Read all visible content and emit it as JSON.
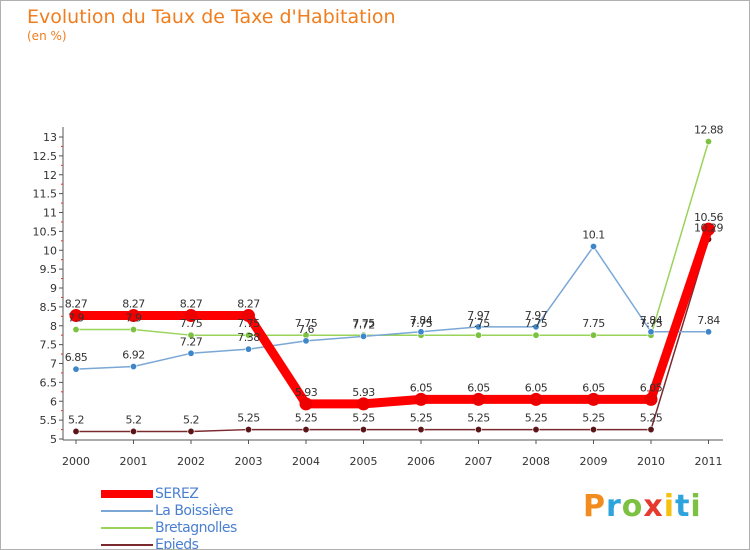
{
  "title": "Evolution du Taux de Taxe d'Habitation",
  "subtitle": "(en %)",
  "logo": {
    "letters": [
      "P",
      "r",
      "o",
      "x",
      "i",
      "t",
      "i"
    ],
    "colors": [
      "#f28c1e",
      "#2ea3dd",
      "#7cc142",
      "#e63a2e",
      "#f5c10f",
      "#2ea3dd",
      "#7cc142"
    ]
  },
  "chart_data": {
    "type": "line",
    "categories": [
      "2000",
      "2001",
      "2002",
      "2003",
      "2004",
      "2005",
      "2006",
      "2007",
      "2008",
      "2009",
      "2010",
      "2011"
    ],
    "ylim": [
      5,
      13
    ],
    "yticks": [
      "5",
      "5.5",
      "6",
      "6.5",
      "7",
      "7.5",
      "8",
      "8.5",
      "9",
      "9.5",
      "10",
      "10.5",
      "11",
      "11.5",
      "12",
      "12.5",
      "13"
    ],
    "grid": false,
    "legend_position": "bottom-left",
    "series": [
      {
        "name": "Epieds",
        "color": "#7a2a2e",
        "point_color": "#5a1518",
        "width": 1.5,
        "values": [
          5.2,
          5.2,
          5.2,
          5.25,
          5.25,
          5.25,
          5.25,
          5.25,
          5.25,
          5.25,
          5.25,
          10.29
        ],
        "labels": [
          "5.2",
          "5.2",
          "5.2",
          "5.25",
          "5.25",
          "5.25",
          "5.25",
          "5.25",
          "5.25",
          "5.25",
          "5.25",
          "10.29"
        ]
      },
      {
        "name": "Bretagnolles",
        "color": "#9ad35a",
        "point_color": "#7cc142",
        "width": 1.5,
        "values": [
          7.9,
          7.9,
          7.75,
          7.75,
          7.75,
          7.75,
          7.75,
          7.75,
          7.75,
          7.75,
          7.75,
          12.88
        ],
        "labels": [
          "7.9",
          "7.9",
          "7.75",
          "7.75",
          "7.75",
          "7.75",
          "7.75",
          "7.75",
          "7.75",
          "7.75",
          "7.75",
          "12.88"
        ]
      },
      {
        "name": "La Boissière",
        "color": "#7aa7d6",
        "point_color": "#3f86c9",
        "width": 1.5,
        "values": [
          6.85,
          6.92,
          7.27,
          7.38,
          7.6,
          7.72,
          7.84,
          7.97,
          7.97,
          10.1,
          7.84,
          7.84
        ],
        "labels": [
          "6.85",
          "6.92",
          "7.27",
          "7.38",
          "7.6",
          "7.72",
          "7.84",
          "7.97",
          "7.97",
          "10.1",
          "7.84",
          "7.84"
        ]
      },
      {
        "name": "SEREZ",
        "color": "#ff0000",
        "point_color": "#ee0000",
        "width": 9,
        "values": [
          8.27,
          8.27,
          8.27,
          8.27,
          5.93,
          5.93,
          6.05,
          6.05,
          6.05,
          6.05,
          6.05,
          10.56
        ],
        "labels": [
          "8.27",
          "8.27",
          "8.27",
          "8.27",
          "5.93",
          "5.93",
          "6.05",
          "6.05",
          "6.05",
          "6.05",
          "6.05",
          "10.56"
        ]
      }
    ],
    "legend": [
      "SEREZ",
      "La Boissière",
      "Bretagnolles",
      "Epieds"
    ]
  }
}
